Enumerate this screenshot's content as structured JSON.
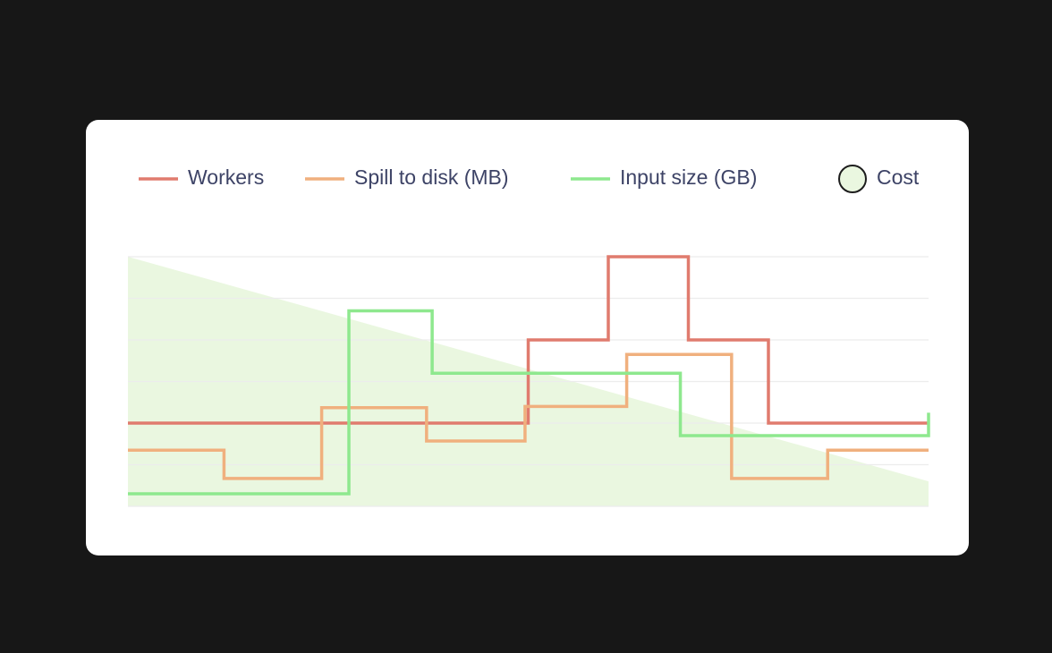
{
  "chart_data": {
    "type": "line",
    "line_shape": "step-after",
    "xlim": [
      0,
      100
    ],
    "ylim": [
      0,
      6
    ],
    "yticks": [
      0,
      1,
      2,
      3,
      4,
      5,
      6
    ],
    "grid": true,
    "series": [
      {
        "name": "Workers",
        "color": "#e07b6e",
        "x": [
          0,
          50,
          60,
          70,
          80,
          100
        ],
        "values": [
          2,
          4,
          6,
          4,
          2,
          2
        ]
      },
      {
        "name": "Spill to disk (MB)",
        "color": "#f0b07e",
        "x": [
          0,
          12,
          24.2,
          37.3,
          49.6,
          62.3,
          75.4,
          87.4,
          100
        ],
        "values": [
          1.35,
          0.67,
          2.37,
          1.57,
          2.4,
          3.65,
          0.67,
          1.35,
          1.35
        ]
      },
      {
        "name": "Input size (GB)",
        "color": "#8ee88e",
        "x": [
          0,
          27.6,
          38,
          69,
          100
        ],
        "values": [
          0.3,
          4.7,
          3.2,
          1.7,
          2.25
        ]
      }
    ],
    "area": {
      "name": "Cost",
      "color": "#eaf7e0",
      "x": [
        0,
        100
      ],
      "values": [
        6,
        0.6
      ]
    }
  }
}
